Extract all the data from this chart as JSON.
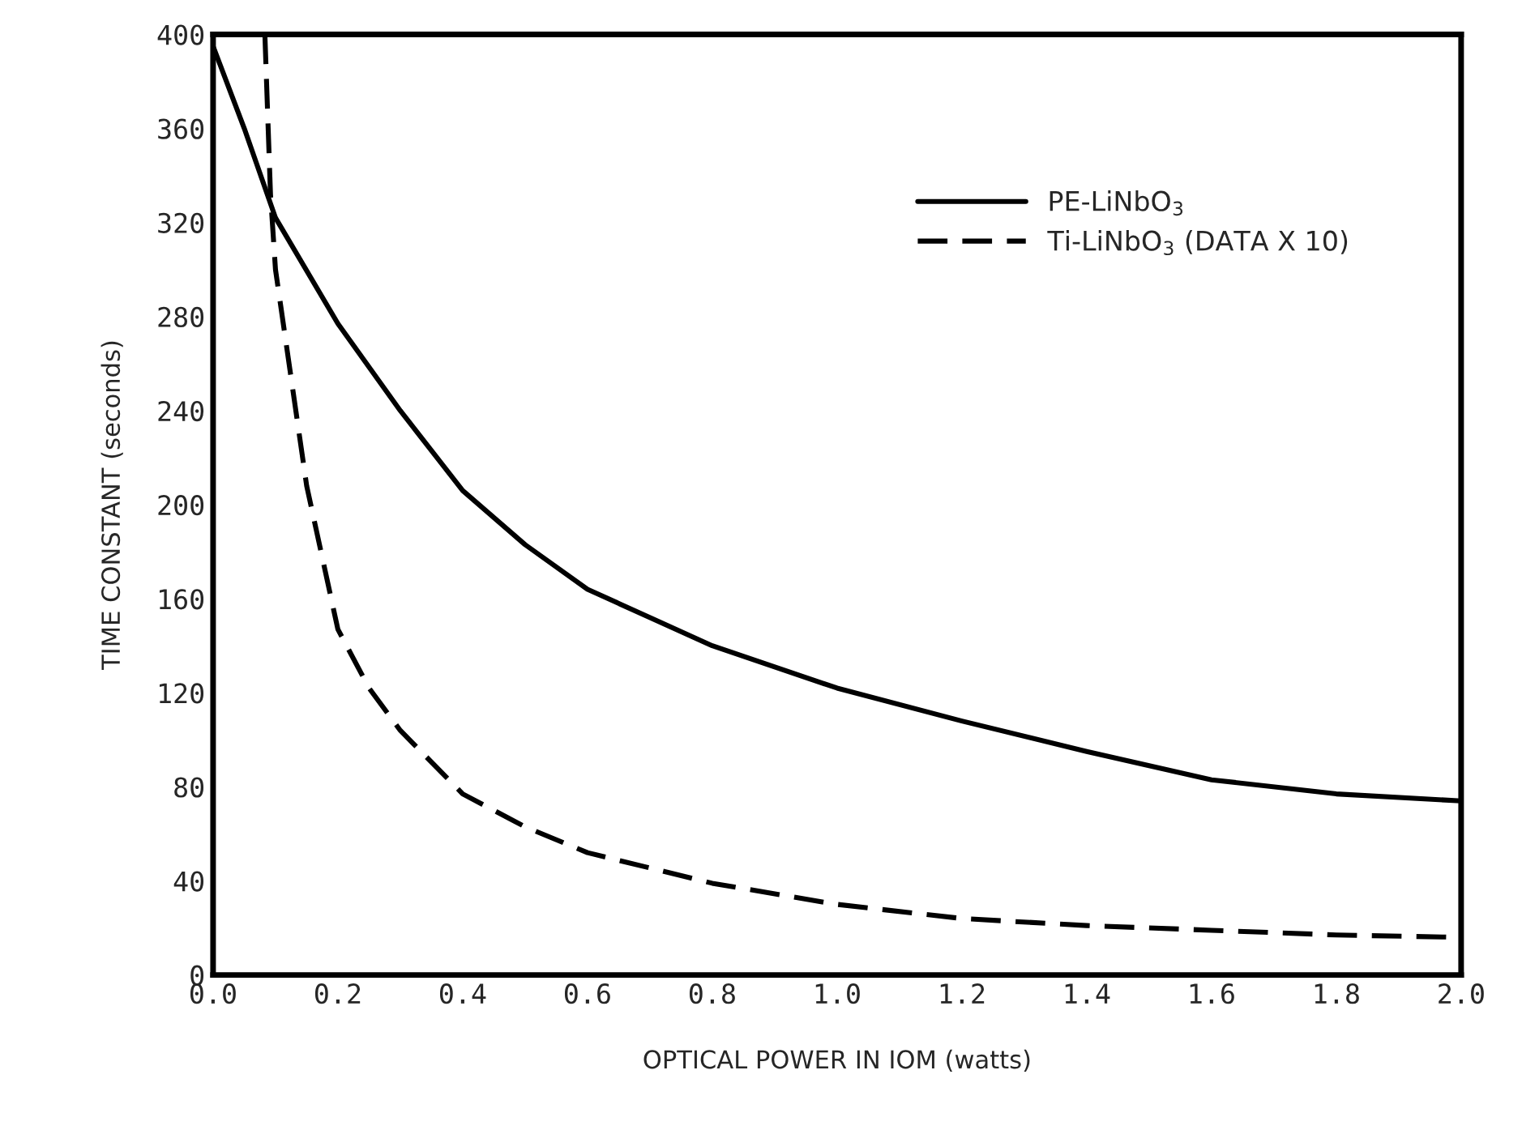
{
  "chart_data": {
    "type": "line",
    "xlabel": "OPTICAL POWER IN IOM (watts)",
    "ylabel": "TIME CONSTANT (seconds)",
    "xlim": [
      0,
      2.0
    ],
    "ylim": [
      0,
      400
    ],
    "xticks": [
      {
        "value": 0,
        "label": "0.0"
      },
      {
        "value": 0.2,
        "label": "0.2"
      },
      {
        "value": 0.4,
        "label": "0.4"
      },
      {
        "value": 0.6,
        "label": "0.6"
      },
      {
        "value": 0.8,
        "label": "0.8"
      },
      {
        "value": 1.0,
        "label": "1.0"
      },
      {
        "value": 1.2,
        "label": "1.2"
      },
      {
        "value": 1.4,
        "label": "1.4"
      },
      {
        "value": 1.6,
        "label": "1.6"
      },
      {
        "value": 1.8,
        "label": "1.8"
      },
      {
        "value": 2.0,
        "label": "2.0"
      }
    ],
    "yticks": [
      0,
      40,
      80,
      120,
      160,
      200,
      240,
      280,
      320,
      360,
      400
    ],
    "grid": false,
    "legend": "top right",
    "series": [
      {
        "name": "PE-LiNbO$_{3}$",
        "color": "#000000",
        "line_style": "solid",
        "x": [
          0,
          0.05,
          0.1,
          0.2,
          0.3,
          0.4,
          0.5,
          0.6,
          0.8,
          1.0,
          1.2,
          1.4,
          1.6,
          1.8,
          2.0
        ],
        "values": [
          395,
          360,
          322,
          277,
          240,
          206,
          183,
          164,
          140,
          122,
          108,
          95,
          83,
          77,
          74
        ]
      },
      {
        "name": "Ti-LiNbO$_{3}$ (DATA X 10)",
        "color": "#000000",
        "line_style": "dashed",
        "x": [
          0.083,
          0.092,
          0.1,
          0.15,
          0.2,
          0.25,
          0.3,
          0.4,
          0.5,
          0.6,
          0.8,
          1.0,
          1.2,
          1.4,
          1.6,
          1.8,
          2.0
        ],
        "values": [
          400,
          332,
          300,
          208,
          147,
          122,
          104,
          77,
          63,
          52,
          39,
          30,
          24,
          21,
          19,
          17,
          16
        ]
      }
    ]
  }
}
